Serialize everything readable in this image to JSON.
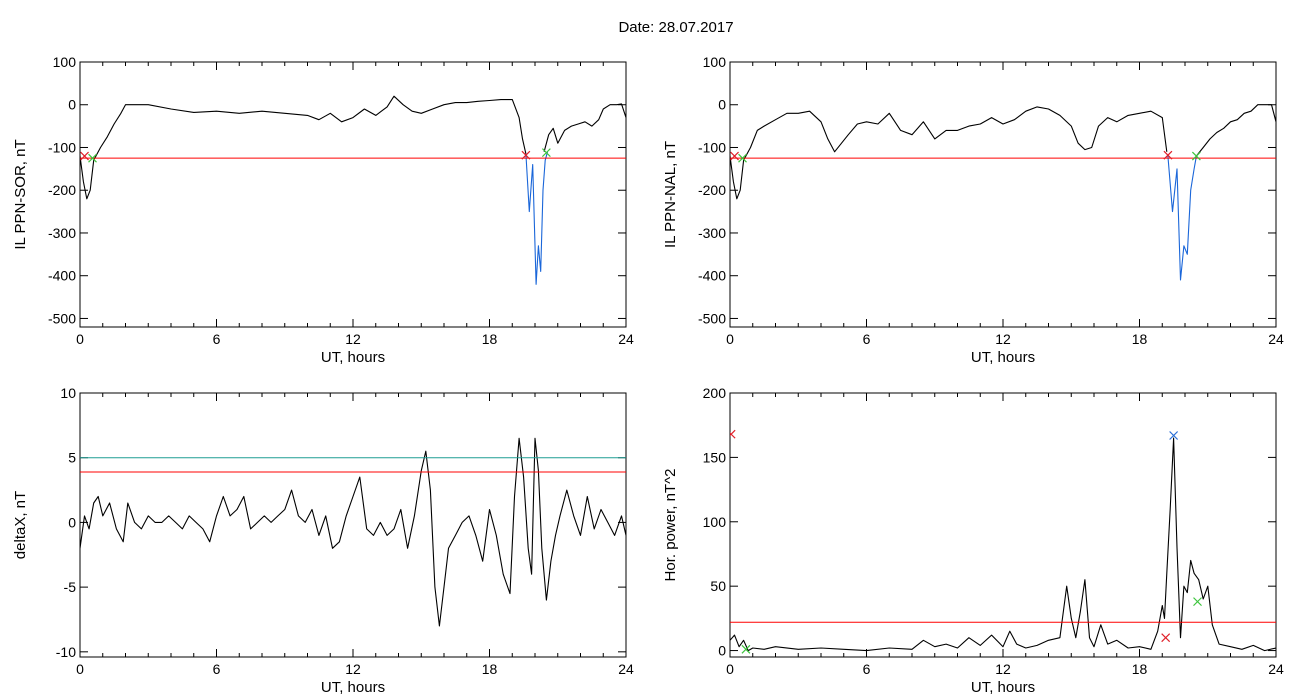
{
  "header": {
    "date_label": "Date:  28.07.2017"
  },
  "colors": {
    "line": "#000000",
    "threshold_red": "#ff0000",
    "threshold_teal": "#1f9e94",
    "substorm_blue": "#1a66d9",
    "marker_red": "#e0202a",
    "marker_green": "#3cc43c",
    "marker_blue": "#2a6fd6"
  },
  "chart_data": [
    {
      "type": "line",
      "panel": "top-left",
      "xlabel": "UT, hours",
      "ylabel": "IL PPN-SOR, nT",
      "xlim": [
        0,
        24
      ],
      "ylim": [
        -520,
        100
      ],
      "xticks": [
        0,
        6,
        12,
        18,
        24
      ],
      "yticks": [
        -500,
        -400,
        -300,
        -200,
        -100,
        0,
        100
      ],
      "threshold_lines": [
        {
          "y": -125,
          "color": "#ff0000"
        }
      ],
      "series": [
        {
          "color": "#000000",
          "x": [
            0,
            0.15,
            0.3,
            0.45,
            0.6,
            0.9,
            1.2,
            1.5,
            1.8,
            2.0,
            3.0,
            4.0,
            5.0,
            6.0,
            7.0,
            8.0,
            9.0,
            10.0,
            10.5,
            11.0,
            11.5,
            12.0,
            12.5,
            13.0,
            13.5,
            13.8,
            14.2,
            14.6,
            15.0,
            15.5,
            16.0,
            16.5,
            17.0,
            17.5,
            18.0,
            18.5,
            19.0,
            19.3,
            19.45,
            19.6
          ],
          "y": [
            -120,
            -180,
            -220,
            -200,
            -130,
            -100,
            -75,
            -45,
            -20,
            0,
            0,
            -10,
            -18,
            -15,
            -20,
            -15,
            -20,
            -25,
            -35,
            -20,
            -40,
            -30,
            -10,
            -25,
            -5,
            20,
            0,
            -15,
            -20,
            -10,
            0,
            5,
            5,
            8,
            10,
            12,
            12,
            -30,
            -80,
            -115
          ]
        },
        {
          "color": "#000000",
          "x": [
            20.4,
            20.6,
            20.8,
            21.0,
            21.3,
            21.6,
            21.9,
            22.2,
            22.5,
            22.8,
            23.0,
            23.3,
            23.6,
            23.8,
            24.0
          ],
          "y": [
            -110,
            -70,
            -55,
            -90,
            -60,
            -50,
            -45,
            -40,
            -50,
            -35,
            -10,
            0,
            0,
            2,
            -30
          ]
        },
        {
          "color": "#1a66d9",
          "x": [
            19.6,
            19.75,
            19.9,
            20.05,
            20.15,
            20.25,
            20.35,
            20.45,
            20.55
          ],
          "y": [
            -115,
            -250,
            -140,
            -420,
            -330,
            -390,
            -200,
            -130,
            -110
          ]
        }
      ],
      "markers": [
        {
          "x": 0.2,
          "y": -120,
          "color": "#e0202a"
        },
        {
          "x": 0.55,
          "y": -125,
          "color": "#3cc43c"
        },
        {
          "x": 19.6,
          "y": -118,
          "color": "#e0202a"
        },
        {
          "x": 20.5,
          "y": -112,
          "color": "#3cc43c"
        }
      ]
    },
    {
      "type": "line",
      "panel": "top-right",
      "xlabel": "UT, hours",
      "ylabel": "IL PPN-NAL, nT",
      "xlim": [
        0,
        24
      ],
      "ylim": [
        -520,
        100
      ],
      "xticks": [
        0,
        6,
        12,
        18,
        24
      ],
      "yticks": [
        -500,
        -400,
        -300,
        -200,
        -100,
        0,
        100
      ],
      "threshold_lines": [
        {
          "y": -125,
          "color": "#ff0000"
        }
      ],
      "series": [
        {
          "color": "#000000",
          "x": [
            0,
            0.15,
            0.3,
            0.45,
            0.6,
            0.9,
            1.2,
            1.5,
            2.0,
            2.5,
            3.0,
            3.5,
            4.0,
            4.3,
            4.6,
            4.9,
            5.2,
            5.6,
            6.0,
            6.5,
            7.0,
            7.5,
            8.0,
            8.5,
            9.0,
            9.5,
            10.0,
            10.5,
            11.0,
            11.5,
            12.0,
            12.5,
            13.0,
            13.5,
            14.0,
            14.5,
            15.0,
            15.3,
            15.6,
            15.9,
            16.2,
            16.6,
            17.0,
            17.5,
            18.0,
            18.5,
            19.0,
            19.2
          ],
          "y": [
            -120,
            -180,
            -220,
            -200,
            -130,
            -100,
            -60,
            -50,
            -35,
            -20,
            -20,
            -15,
            -40,
            -80,
            -110,
            -90,
            -70,
            -45,
            -40,
            -45,
            -20,
            -60,
            -70,
            -40,
            -80,
            -60,
            -60,
            -50,
            -45,
            -30,
            -45,
            -35,
            -15,
            -5,
            -10,
            -25,
            -50,
            -90,
            -105,
            -100,
            -50,
            -30,
            -40,
            -25,
            -20,
            -15,
            -30,
            -110
          ]
        },
        {
          "color": "#000000",
          "x": [
            20.5,
            20.8,
            21.1,
            21.4,
            21.7,
            22.0,
            22.3,
            22.6,
            22.9,
            23.2,
            23.5,
            23.8,
            24.0
          ],
          "y": [
            -120,
            -100,
            -80,
            -65,
            -55,
            -40,
            -35,
            -20,
            -15,
            0,
            0,
            0,
            -40
          ]
        },
        {
          "color": "#1a66d9",
          "x": [
            19.25,
            19.45,
            19.65,
            19.8,
            19.95,
            20.1,
            20.25,
            20.4,
            20.5
          ],
          "y": [
            -120,
            -250,
            -150,
            -410,
            -330,
            -350,
            -200,
            -150,
            -120
          ]
        }
      ],
      "markers": [
        {
          "x": 0.2,
          "y": -120,
          "color": "#e0202a"
        },
        {
          "x": 0.55,
          "y": -125,
          "color": "#3cc43c"
        },
        {
          "x": 19.25,
          "y": -118,
          "color": "#e0202a"
        },
        {
          "x": 20.5,
          "y": -120,
          "color": "#3cc43c"
        }
      ]
    },
    {
      "type": "line",
      "panel": "bottom-left",
      "xlabel": "UT, hours",
      "ylabel": "deltaX, nT",
      "xlim": [
        0,
        24
      ],
      "ylim": [
        -10.4,
        10
      ],
      "xticks": [
        0,
        6,
        12,
        18,
        24
      ],
      "yticks": [
        -10,
        -5,
        0,
        5,
        10
      ],
      "threshold_lines": [
        {
          "y": 5,
          "color": "#1f9e94"
        },
        {
          "y": 3.9,
          "color": "#ff0000"
        }
      ],
      "series": [
        {
          "color": "#000000",
          "x": [
            0,
            0.2,
            0.4,
            0.6,
            0.8,
            1.0,
            1.3,
            1.6,
            1.9,
            2.1,
            2.4,
            2.7,
            3.0,
            3.3,
            3.6,
            3.9,
            4.2,
            4.5,
            4.8,
            5.1,
            5.4,
            5.7,
            6.0,
            6.3,
            6.6,
            6.9,
            7.2,
            7.5,
            7.8,
            8.1,
            8.4,
            8.7,
            9.0,
            9.3,
            9.6,
            9.9,
            10.2,
            10.5,
            10.8,
            11.1,
            11.4,
            11.7,
            12.0,
            12.3,
            12.6,
            12.9,
            13.2,
            13.5,
            13.8,
            14.1,
            14.4,
            14.7,
            15.0,
            15.2,
            15.4,
            15.6,
            15.8,
            16.0,
            16.2,
            16.5,
            16.8,
            17.1,
            17.4,
            17.7,
            18.0,
            18.3,
            18.6,
            18.9,
            19.1,
            19.3,
            19.5,
            19.7,
            19.85,
            20.0,
            20.15,
            20.3,
            20.5,
            20.7,
            20.9,
            21.1,
            21.4,
            21.7,
            22.0,
            22.3,
            22.6,
            22.9,
            23.2,
            23.5,
            23.8,
            24.0
          ],
          "y": [
            -2,
            0.5,
            -0.5,
            1.5,
            2,
            0.5,
            1.5,
            -0.5,
            -1.5,
            1.5,
            0,
            -0.5,
            0.5,
            0,
            0,
            0.5,
            0,
            -0.5,
            0.5,
            0,
            -0.5,
            -1.5,
            0.5,
            2,
            0.5,
            1,
            2,
            -0.5,
            0,
            0.5,
            0,
            0.5,
            1,
            2.5,
            0.5,
            0,
            1,
            -1,
            0.5,
            -2,
            -1.5,
            0.5,
            2,
            3.5,
            -0.5,
            -1,
            0,
            -1,
            -0.5,
            1,
            -2,
            0.5,
            4,
            5.5,
            2.5,
            -5,
            -8,
            -5,
            -2,
            -1,
            0,
            0.5,
            -1,
            -3,
            1,
            -1,
            -4,
            -5.5,
            2,
            6.5,
            3.5,
            -2,
            -4,
            6.5,
            4,
            -2,
            -6,
            -3,
            -1,
            0.5,
            2.5,
            0.5,
            -1,
            2,
            -0.5,
            1,
            0,
            -1,
            0.5,
            -1
          ]
        }
      ],
      "markers": []
    },
    {
      "type": "line",
      "panel": "bottom-right",
      "xlabel": "UT, hours",
      "ylabel": "Hor. power, nT^2",
      "xlim": [
        0,
        24
      ],
      "ylim": [
        -5,
        200
      ],
      "xticks": [
        0,
        6,
        12,
        18,
        24
      ],
      "yticks": [
        0,
        50,
        100,
        150,
        200
      ],
      "threshold_lines": [
        {
          "y": 22,
          "color": "#ff0000"
        }
      ],
      "series": [
        {
          "color": "#000000",
          "x": [
            0,
            0.2,
            0.4,
            0.6,
            0.8,
            1.0,
            1.5,
            2.0,
            3.0,
            4.0,
            5.0,
            6.0,
            7.0,
            8.0,
            8.5,
            9.0,
            9.5,
            10.0,
            10.5,
            11.0,
            11.5,
            12.0,
            12.3,
            12.6,
            13.0,
            13.5,
            14.0,
            14.5,
            14.8,
            15.0,
            15.2,
            15.4,
            15.6,
            15.8,
            16.0,
            16.3,
            16.6,
            17.0,
            17.5,
            18.0,
            18.5,
            18.8,
            19.0,
            19.1,
            19.2,
            19.35,
            19.5,
            19.65,
            19.8,
            19.95,
            20.1,
            20.25,
            20.4,
            20.6,
            20.8,
            21.0,
            21.2,
            21.5,
            22.0,
            22.5,
            23.0,
            23.5,
            24.0
          ],
          "y": [
            8,
            12,
            3,
            8,
            0,
            2,
            1,
            3,
            1,
            2,
            1,
            0,
            2,
            1,
            8,
            3,
            5,
            2,
            10,
            4,
            12,
            3,
            15,
            5,
            2,
            4,
            8,
            10,
            50,
            25,
            10,
            30,
            55,
            10,
            3,
            20,
            5,
            8,
            2,
            3,
            1,
            15,
            35,
            25,
            60,
            110,
            165,
            80,
            10,
            50,
            45,
            70,
            60,
            55,
            40,
            50,
            20,
            5,
            3,
            1,
            4,
            0,
            2
          ]
        }
      ],
      "markers": [
        {
          "x": 0.05,
          "y": 168,
          "color": "#e0202a"
        },
        {
          "x": 0.7,
          "y": 1,
          "color": "#3cc43c"
        },
        {
          "x": 19.15,
          "y": 10,
          "color": "#e0202a"
        },
        {
          "x": 19.5,
          "y": 167,
          "color": "#2a6fd6"
        },
        {
          "x": 20.55,
          "y": 38,
          "color": "#3cc43c"
        }
      ]
    }
  ]
}
